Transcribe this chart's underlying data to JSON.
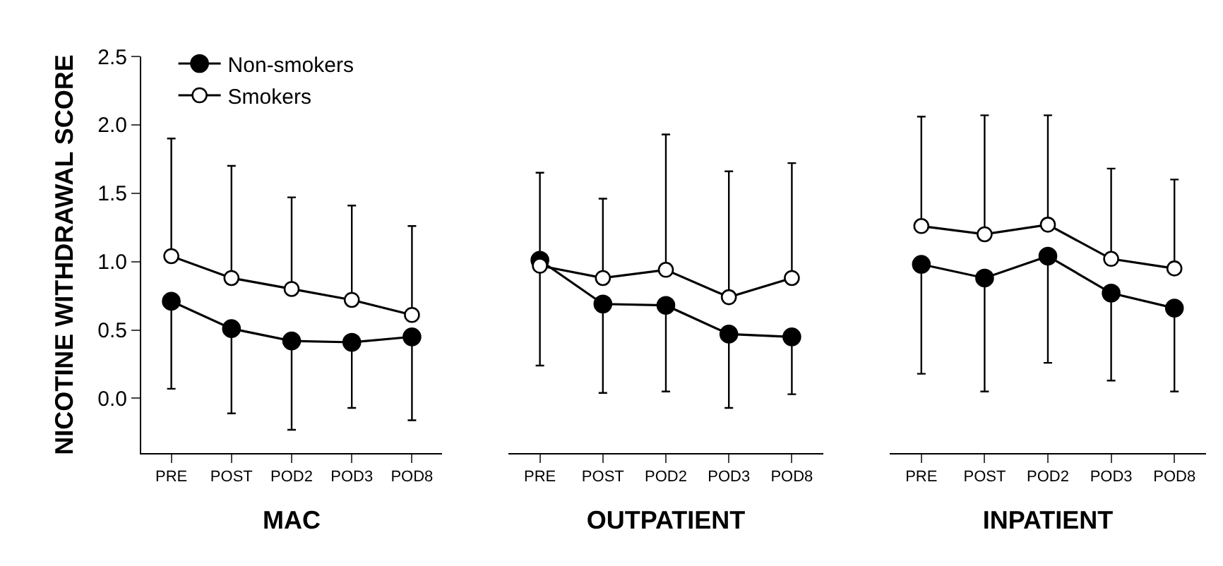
{
  "chart_data": [
    {
      "type": "line",
      "xlabel": "MAC",
      "ylabel": "NICOTINE WITHDRAWAL SCORE",
      "categories": [
        "PRE",
        "POST",
        "POD2",
        "POD3",
        "POD8"
      ],
      "ylim": [
        -0.4,
        2.5
      ],
      "yticks": [
        {
          "value": 0,
          "label": "0.0"
        },
        0.5,
        {
          "value": 1,
          "label": "1.0"
        },
        1.5,
        {
          "value": 2,
          "label": "2.0"
        },
        2.5
      ],
      "grid": false,
      "legend": "top left",
      "marker": "circle",
      "line_style": "solid",
      "series": [
        {
          "name": "Non-smokers",
          "color": "#000000",
          "values": [
            0.71,
            0.51,
            0.42,
            0.41,
            0.45
          ],
          "errors": [
            [
              0.07,
              0.71
            ],
            [
              -0.11,
              0.51
            ],
            [
              -0.23,
              0.42
            ],
            [
              -0.07,
              0.41
            ],
            [
              -0.16,
              0.45
            ]
          ]
        },
        {
          "name": "Smokers",
          "color": "#ffffff",
          "values": [
            1.04,
            0.88,
            0.8,
            0.72,
            0.61
          ],
          "errors": [
            [
              1.04,
              1.9
            ],
            [
              0.88,
              1.7
            ],
            [
              0.8,
              1.47
            ],
            [
              0.72,
              1.41
            ],
            [
              0.61,
              1.26
            ]
          ]
        }
      ]
    },
    {
      "type": "line",
      "xlabel": "OUTPATIENT",
      "categories": [
        "PRE",
        "POST",
        "POD2",
        "POD3",
        "POD8"
      ],
      "ylim": [
        -0.4,
        2.5
      ],
      "tick_labels": "x",
      "grid": false,
      "legend": false,
      "marker": "circle",
      "line_style": "solid",
      "series": [
        {
          "color": "#000000",
          "values": [
            1.01,
            0.69,
            0.68,
            0.47,
            0.45
          ],
          "errors": [
            [
              0.24,
              1.01
            ],
            [
              0.04,
              0.69
            ],
            [
              0.05,
              0.68
            ],
            [
              -0.07,
              0.47
            ],
            [
              0.03,
              0.45
            ]
          ]
        },
        {
          "color": "#ffffff",
          "values": [
            0.97,
            0.88,
            0.94,
            0.74,
            0.88
          ],
          "errors": [
            [
              0.97,
              1.65
            ],
            [
              0.88,
              1.46
            ],
            [
              0.94,
              1.93
            ],
            [
              0.74,
              1.66
            ],
            [
              0.88,
              1.72
            ]
          ]
        }
      ]
    },
    {
      "type": "line",
      "xlabel": "INPATIENT",
      "categories": [
        "PRE",
        "POST",
        "POD2",
        "POD3",
        "POD8"
      ],
      "ylim": [
        -0.4,
        2.5
      ],
      "tick_labels": "x",
      "grid": false,
      "legend": false,
      "marker": "circle",
      "line_style": "solid",
      "series": [
        {
          "color": "#000000",
          "values": [
            0.98,
            0.88,
            1.04,
            0.77,
            0.66
          ],
          "errors": [
            [
              0.18,
              0.98
            ],
            [
              0.05,
              0.88
            ],
            [
              0.26,
              1.04
            ],
            [
              0.13,
              0.77
            ],
            [
              0.05,
              0.66
            ]
          ]
        },
        {
          "color": "#ffffff",
          "values": [
            1.26,
            1.2,
            1.27,
            1.02,
            0.95
          ],
          "errors": [
            [
              1.26,
              2.06
            ],
            [
              1.2,
              2.07
            ],
            [
              1.27,
              2.07
            ],
            [
              1.02,
              1.68
            ],
            [
              0.95,
              1.6
            ]
          ]
        }
      ]
    }
  ]
}
